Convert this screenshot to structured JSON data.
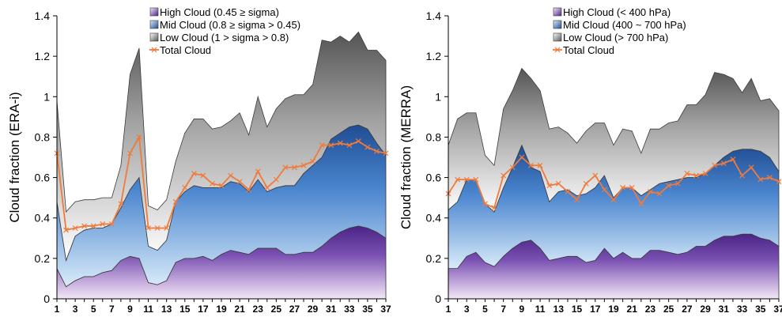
{
  "chart_data": [
    {
      "type": "area",
      "ylabel": "Cloud fraction (ERA-i)",
      "ylim": [
        0,
        1.4
      ],
      "yticks": [
        "0",
        "0.2",
        "0.4",
        "0.6",
        "0.8",
        "1",
        "1.2",
        "1.4"
      ],
      "x": [
        1,
        2,
        3,
        4,
        5,
        6,
        7,
        8,
        9,
        10,
        11,
        12,
        13,
        14,
        15,
        16,
        17,
        18,
        19,
        20,
        21,
        22,
        23,
        24,
        25,
        26,
        27,
        28,
        29,
        30,
        31,
        32,
        33,
        34,
        35,
        36,
        37
      ],
      "xticks": [
        "1",
        "3",
        "5",
        "7",
        "9",
        "11",
        "13",
        "15",
        "17",
        "19",
        "21",
        "23",
        "25",
        "27",
        "29",
        "31",
        "33",
        "35",
        "37"
      ],
      "legend_position": "top-center",
      "stacked": true,
      "series": [
        {
          "name": "High Cloud (0.45 ≥ sigma)",
          "color": "#7f5bb2",
          "values": [
            0.15,
            0.06,
            0.09,
            0.11,
            0.11,
            0.13,
            0.14,
            0.19,
            0.21,
            0.2,
            0.08,
            0.07,
            0.09,
            0.18,
            0.2,
            0.2,
            0.21,
            0.19,
            0.22,
            0.24,
            0.23,
            0.22,
            0.25,
            0.25,
            0.25,
            0.22,
            0.22,
            0.23,
            0.23,
            0.26,
            0.3,
            0.33,
            0.35,
            0.36,
            0.35,
            0.33,
            0.3
          ]
        },
        {
          "name": "Mid Cloud (0.8 ≥ sigma > 0.45)",
          "color": "#3d74c2",
          "values": [
            0.33,
            0.13,
            0.22,
            0.23,
            0.24,
            0.22,
            0.23,
            0.26,
            0.33,
            0.4,
            0.18,
            0.17,
            0.2,
            0.3,
            0.33,
            0.36,
            0.34,
            0.36,
            0.33,
            0.34,
            0.34,
            0.31,
            0.34,
            0.28,
            0.3,
            0.34,
            0.34,
            0.39,
            0.43,
            0.44,
            0.49,
            0.49,
            0.5,
            0.5,
            0.49,
            0.44,
            0.41
          ]
        },
        {
          "name": "Low Cloud (1 > sigma > 0.8)",
          "color": "#a6a6a6",
          "values": [
            0.5,
            0.24,
            0.17,
            0.15,
            0.14,
            0.15,
            0.13,
            0.21,
            0.57,
            0.64,
            0.2,
            0.2,
            0.2,
            0.2,
            0.29,
            0.33,
            0.34,
            0.29,
            0.3,
            0.3,
            0.35,
            0.28,
            0.41,
            0.32,
            0.39,
            0.43,
            0.45,
            0.39,
            0.4,
            0.58,
            0.48,
            0.48,
            0.42,
            0.46,
            0.39,
            0.46,
            0.47
          ]
        }
      ],
      "line": {
        "name": "Total Cloud",
        "color": "#f07a3c",
        "values": [
          0.72,
          0.34,
          0.35,
          0.36,
          0.36,
          0.37,
          0.37,
          0.47,
          0.72,
          0.8,
          0.35,
          0.35,
          0.35,
          0.48,
          0.55,
          0.62,
          0.61,
          0.57,
          0.56,
          0.61,
          0.58,
          0.54,
          0.63,
          0.55,
          0.59,
          0.65,
          0.65,
          0.66,
          0.68,
          0.76,
          0.76,
          0.77,
          0.76,
          0.78,
          0.75,
          0.73,
          0.72
        ]
      }
    },
    {
      "type": "area",
      "ylabel": "Cloud fraction (MERRA)",
      "ylim": [
        0,
        1.4
      ],
      "yticks": [
        "0",
        "0.2",
        "0.4",
        "0.6",
        "0.8",
        "1",
        "1.2",
        "1.4"
      ],
      "x": [
        1,
        2,
        3,
        4,
        5,
        6,
        7,
        8,
        9,
        10,
        11,
        12,
        13,
        14,
        15,
        16,
        17,
        18,
        19,
        20,
        21,
        22,
        23,
        24,
        25,
        26,
        27,
        28,
        29,
        30,
        31,
        32,
        33,
        34,
        35,
        36,
        37
      ],
      "xticks": [
        "1",
        "3",
        "5",
        "7",
        "9",
        "11",
        "13",
        "15",
        "17",
        "19",
        "21",
        "23",
        "25",
        "27",
        "29",
        "31",
        "33",
        "35",
        "37"
      ],
      "legend_position": "top-center",
      "stacked": true,
      "series": [
        {
          "name": "High Cloud (< 400 hPa)",
          "color": "#7f5bb2",
          "values": [
            0.15,
            0.15,
            0.21,
            0.23,
            0.18,
            0.16,
            0.21,
            0.25,
            0.28,
            0.29,
            0.25,
            0.19,
            0.2,
            0.21,
            0.21,
            0.18,
            0.19,
            0.25,
            0.2,
            0.23,
            0.2,
            0.2,
            0.24,
            0.24,
            0.23,
            0.22,
            0.23,
            0.26,
            0.26,
            0.29,
            0.31,
            0.31,
            0.32,
            0.32,
            0.3,
            0.29,
            0.26
          ]
        },
        {
          "name": "Mid Cloud (400 ~ 700 hPa)",
          "color": "#3d74c2",
          "values": [
            0.29,
            0.33,
            0.38,
            0.36,
            0.29,
            0.27,
            0.34,
            0.4,
            0.48,
            0.36,
            0.38,
            0.29,
            0.33,
            0.33,
            0.3,
            0.34,
            0.36,
            0.36,
            0.3,
            0.32,
            0.35,
            0.31,
            0.3,
            0.33,
            0.35,
            0.37,
            0.37,
            0.34,
            0.36,
            0.37,
            0.39,
            0.42,
            0.42,
            0.42,
            0.43,
            0.41,
            0.37
          ]
        },
        {
          "name": "Low Cloud (> 700 hPa)",
          "color": "#a6a6a6",
          "values": [
            0.32,
            0.41,
            0.33,
            0.33,
            0.24,
            0.23,
            0.39,
            0.38,
            0.38,
            0.44,
            0.4,
            0.36,
            0.32,
            0.28,
            0.26,
            0.31,
            0.32,
            0.26,
            0.26,
            0.29,
            0.28,
            0.21,
            0.3,
            0.27,
            0.29,
            0.29,
            0.36,
            0.36,
            0.39,
            0.46,
            0.41,
            0.36,
            0.28,
            0.35,
            0.25,
            0.29,
            0.3
          ]
        }
      ],
      "line": {
        "name": "Total Cloud",
        "color": "#f07a3c",
        "values": [
          0.52,
          0.59,
          0.59,
          0.59,
          0.47,
          0.45,
          0.61,
          0.65,
          0.7,
          0.66,
          0.66,
          0.56,
          0.57,
          0.53,
          0.49,
          0.57,
          0.61,
          0.54,
          0.49,
          0.55,
          0.55,
          0.47,
          0.53,
          0.52,
          0.56,
          0.57,
          0.62,
          0.61,
          0.62,
          0.66,
          0.67,
          0.69,
          0.61,
          0.65,
          0.59,
          0.6,
          0.58
        ]
      }
    }
  ]
}
